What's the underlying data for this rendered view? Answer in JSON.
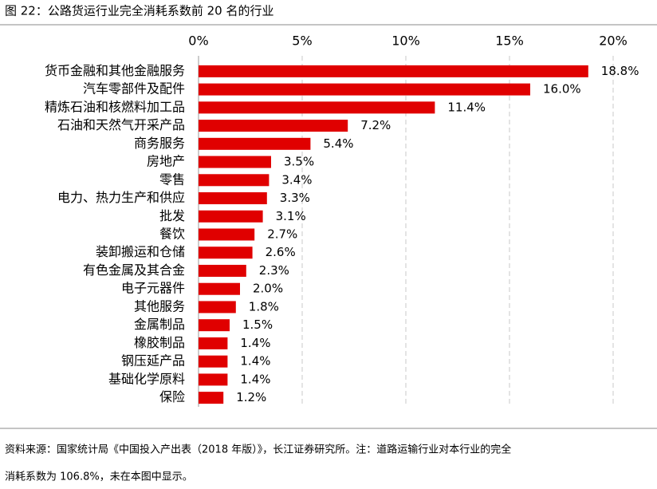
{
  "chart_data": {
    "type": "bar",
    "orientation": "horizontal",
    "title": "图 22：公路货运行业完全消耗系数前 20 名的行业",
    "categories": [
      "货币金融和其他金融服务",
      "汽车零部件及配件",
      "精炼石油和核燃料加工品",
      "石油和天然气开采产品",
      "商务服务",
      "房地产",
      "零售",
      "电力、热力生产和供应",
      "批发",
      "餐饮",
      "装卸搬运和仓储",
      "有色金属及其合金",
      "电子元器件",
      "其他服务",
      "金属制品",
      "橡胶制品",
      "钢压延产品",
      "基础化学原料",
      "保险"
    ],
    "values": [
      18.8,
      16.0,
      11.4,
      7.2,
      5.4,
      3.5,
      3.4,
      3.3,
      3.1,
      2.7,
      2.6,
      2.3,
      2.0,
      1.8,
      1.5,
      1.4,
      1.4,
      1.4,
      1.2
    ],
    "value_labels": [
      "18.8%",
      "16.0%",
      "11.4%",
      "7.2%",
      "5.4%",
      "3.5%",
      "3.4%",
      "3.3%",
      "3.1%",
      "2.7%",
      "2.6%",
      "2.3%",
      "2.0%",
      "1.8%",
      "1.5%",
      "1.4%",
      "1.4%",
      "1.4%",
      "1.2%"
    ],
    "color": "#e00000",
    "xlim": [
      0,
      20
    ],
    "xticks": [
      {
        "value": 0,
        "label": "0%"
      },
      {
        "value": 5,
        "label": "5%"
      },
      {
        "value": 10,
        "label": "10%"
      },
      {
        "value": 15,
        "label": "15%"
      },
      {
        "value": 20,
        "label": "20%"
      }
    ],
    "grid": true,
    "source": [
      "资料来源：国家统计局《中国投入产出表（2018 年版）》，长江证券研究所。注：道路运输行业对本行业的完全",
      "消耗系数为 106.8%，未在本图中显示。"
    ]
  }
}
